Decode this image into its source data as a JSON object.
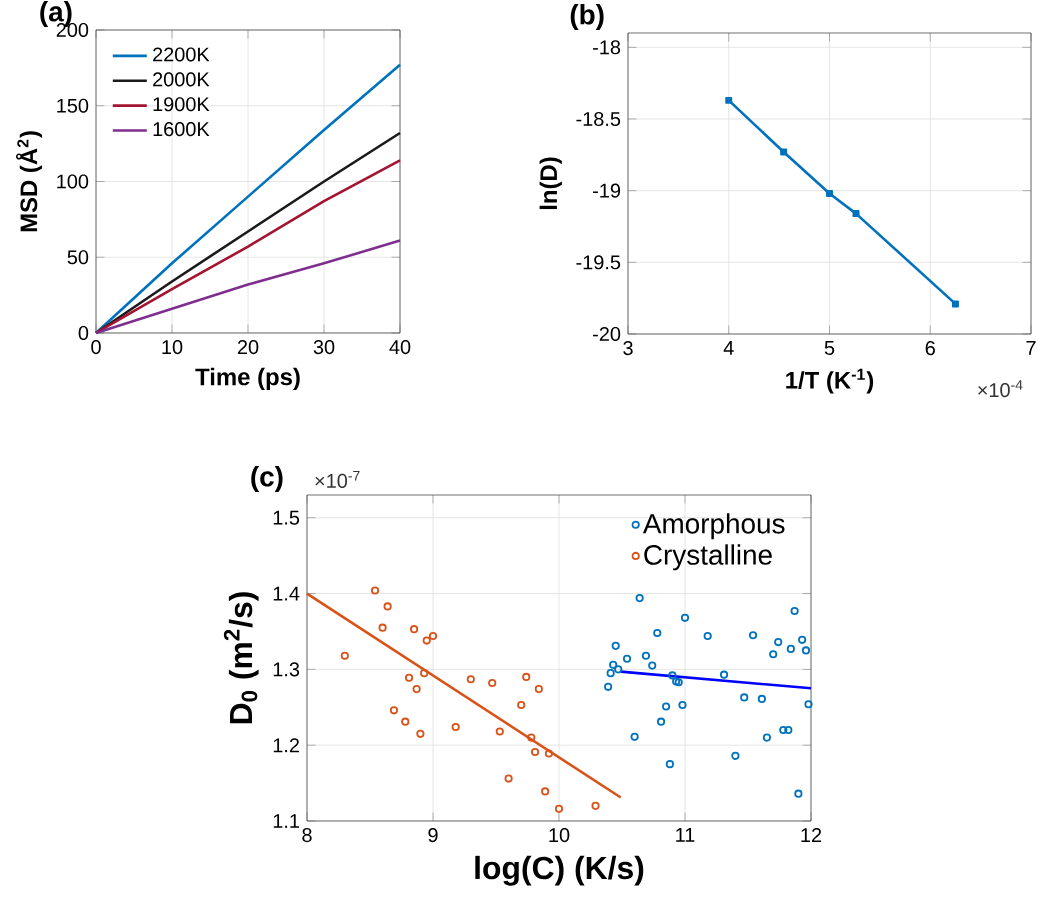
{
  "chart_data": [
    {
      "type": "line",
      "title": "(a)",
      "xlabel": "Time (ps)",
      "ylabel": "MSD (Å$^{2}$)",
      "xlim": [
        0,
        40
      ],
      "ylim": [
        0,
        200
      ],
      "xticks": [
        0,
        10,
        20,
        30,
        40
      ],
      "yticks": [
        0,
        50,
        100,
        150,
        200
      ],
      "grid": true,
      "legend": "top left",
      "marker": "none",
      "x": [
        0,
        10,
        20,
        30,
        40
      ],
      "series": [
        {
          "name": "2200K",
          "color": "#0072bd",
          "values": [
            0,
            46,
            90,
            134,
            177
          ]
        },
        {
          "name": "2000K",
          "color": "#1a1a1a",
          "values": [
            0,
            34,
            67,
            100,
            132
          ]
        },
        {
          "name": "1900K",
          "color": "#a2142f",
          "values": [
            0,
            29,
            57,
            87,
            114
          ]
        },
        {
          "name": "1600K",
          "color": "#7e2f8e",
          "values": [
            0,
            16,
            32,
            46,
            61
          ]
        }
      ]
    },
    {
      "type": "line",
      "title": "(b)",
      "xlabel": "1/T  (K$^{-1}$)",
      "ylabel": "ln(D)",
      "annotations": [
        "×10$^{-4}$"
      ],
      "xlim": [
        3,
        7
      ],
      "ylim": [
        -20,
        -17.9
      ],
      "xticks": [
        3,
        4,
        5,
        6,
        7
      ],
      "yticks": [
        -20,
        -19.5,
        -19,
        -18.5,
        -18
      ],
      "grid": true,
      "marker": "square",
      "x": [
        4,
        4.545,
        5,
        5.263,
        6.25
      ],
      "series": [
        {
          "color": "#0072bd",
          "values": [
            -18.37,
            -18.73,
            -19.02,
            -19.16,
            -19.79
          ]
        }
      ]
    },
    {
      "type": "scatter",
      "title": "(c)",
      "xlabel": "log(C) (K/s)",
      "ylabel": "D$_{0}$ (m$^{2}$/s)",
      "annotations": [
        "×10$^{-7}$"
      ],
      "xlim": [
        8,
        12
      ],
      "ylim": [
        1.1,
        1.53
      ],
      "xticks": [
        8,
        9,
        10,
        11,
        12
      ],
      "yticks": [
        1.1,
        1.2,
        1.3,
        1.4,
        1.5
      ],
      "grid": true,
      "legend": "top right",
      "marker": "circle",
      "series": [
        {
          "name": "Amorphous",
          "color": "#0072bd",
          "x": [
            10.45,
            10.43,
            10.41,
            10.39,
            10.47,
            10.54,
            10.6,
            10.64,
            11.0,
            10.78,
            11.18,
            11.54,
            11.87,
            11.74,
            11.7,
            11.84,
            11.93,
            11.96,
            10.69,
            10.74,
            10.9,
            10.93,
            10.95,
            11.31,
            11.47,
            11.61,
            11.98,
            10.85,
            10.98,
            10.81,
            11.65,
            11.78,
            11.82,
            11.4,
            10.88,
            11.9
          ],
          "values": [
            1.331,
            1.306,
            1.295,
            1.277,
            1.3,
            1.314,
            1.211,
            1.394,
            1.368,
            1.348,
            1.344,
            1.345,
            1.377,
            1.336,
            1.32,
            1.327,
            1.339,
            1.325,
            1.318,
            1.305,
            1.292,
            1.284,
            1.283,
            1.293,
            1.263,
            1.261,
            1.254,
            1.251,
            1.253,
            1.231,
            1.21,
            1.22,
            1.22,
            1.186,
            1.175,
            1.136
          ]
        },
        {
          "name": "Crystalline",
          "color": "#d95319",
          "x": [
            8.3,
            8.54,
            8.64,
            8.6,
            8.85,
            8.95,
            9.0,
            8.81,
            8.93,
            8.87,
            8.69,
            8.78,
            8.9,
            9.18,
            9.3,
            9.47,
            9.74,
            9.84,
            9.7,
            9.53,
            9.78,
            9.81,
            9.92,
            9.6,
            9.89,
            10.0,
            10.29
          ],
          "values": [
            1.318,
            1.404,
            1.383,
            1.355,
            1.353,
            1.338,
            1.344,
            1.289,
            1.295,
            1.274,
            1.246,
            1.231,
            1.215,
            1.224,
            1.287,
            1.282,
            1.29,
            1.274,
            1.253,
            1.218,
            1.21,
            1.191,
            1.189,
            1.156,
            1.139,
            1.116,
            1.12
          ]
        },
        {
          "type": "line",
          "marker": "none",
          "color": "#0000ff",
          "x": [
            10.49,
            12
          ],
          "values": [
            1.297,
            1.275
          ]
        },
        {
          "type": "line",
          "marker": "none",
          "color": "#d95319",
          "x": [
            8,
            10.49
          ],
          "values": [
            1.4,
            1.131
          ]
        }
      ]
    }
  ]
}
